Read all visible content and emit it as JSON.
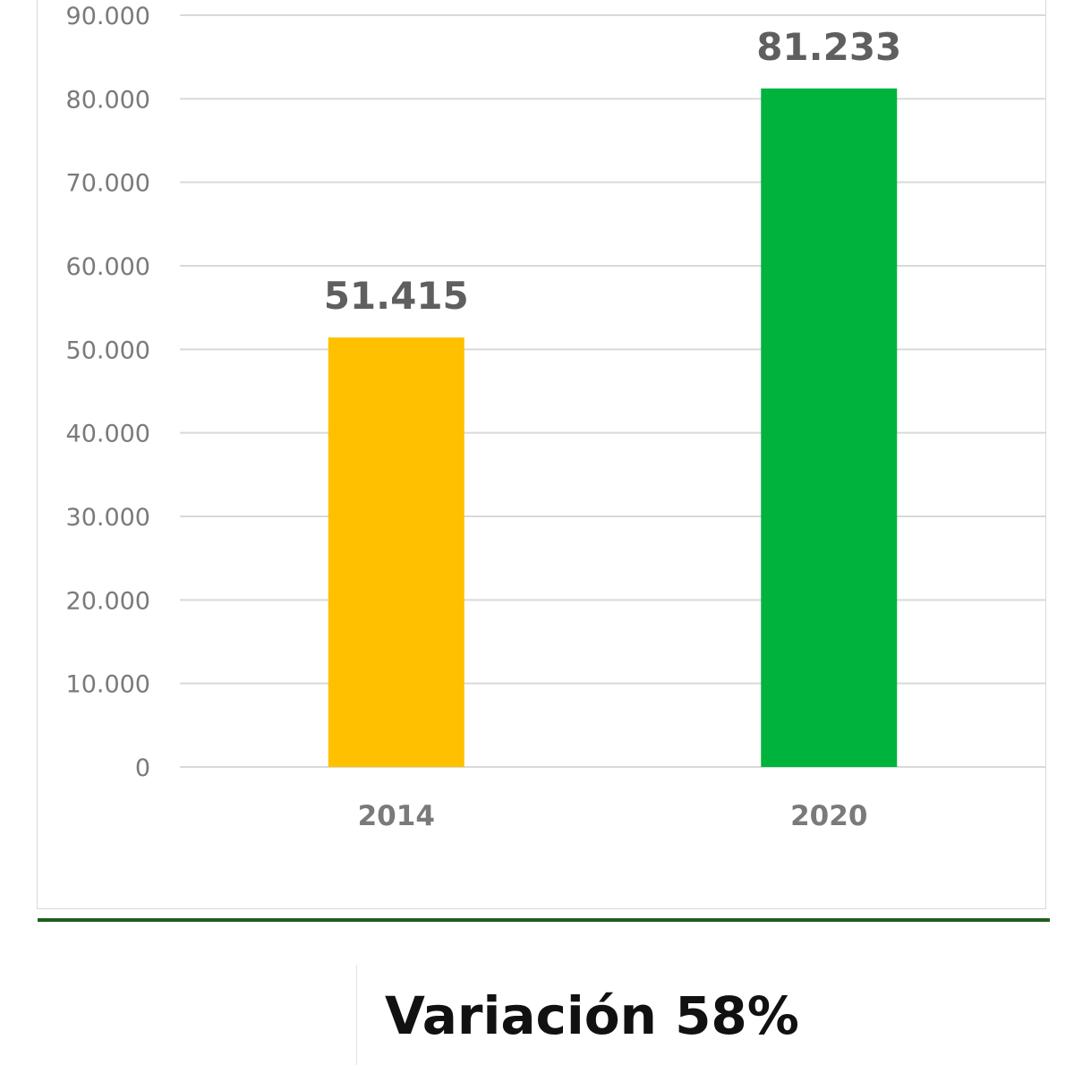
{
  "chart_data": {
    "type": "bar",
    "title": "",
    "xlabel": "",
    "ylabel": "",
    "categories": [
      "2014",
      "2020"
    ],
    "values": [
      51415,
      81233
    ],
    "value_labels": [
      "51.415",
      "81.233"
    ],
    "bar_colors": [
      "#FFC000",
      "#00B33C"
    ],
    "ylim": [
      0,
      90000
    ],
    "yticks": [
      0,
      10000,
      20000,
      30000,
      40000,
      50000,
      60000,
      70000,
      80000,
      90000
    ],
    "ytick_labels": [
      "0",
      "10.000",
      "20.000",
      "30.000",
      "40.000",
      "50.000",
      "60.000",
      "70.000",
      "80.000",
      "90.000"
    ],
    "grid": true,
    "legend": "none"
  },
  "footer": {
    "variation_text": "Variación 58%"
  },
  "colors": {
    "divider": "#1E5E1E",
    "gridline": "#D9D9D9"
  }
}
